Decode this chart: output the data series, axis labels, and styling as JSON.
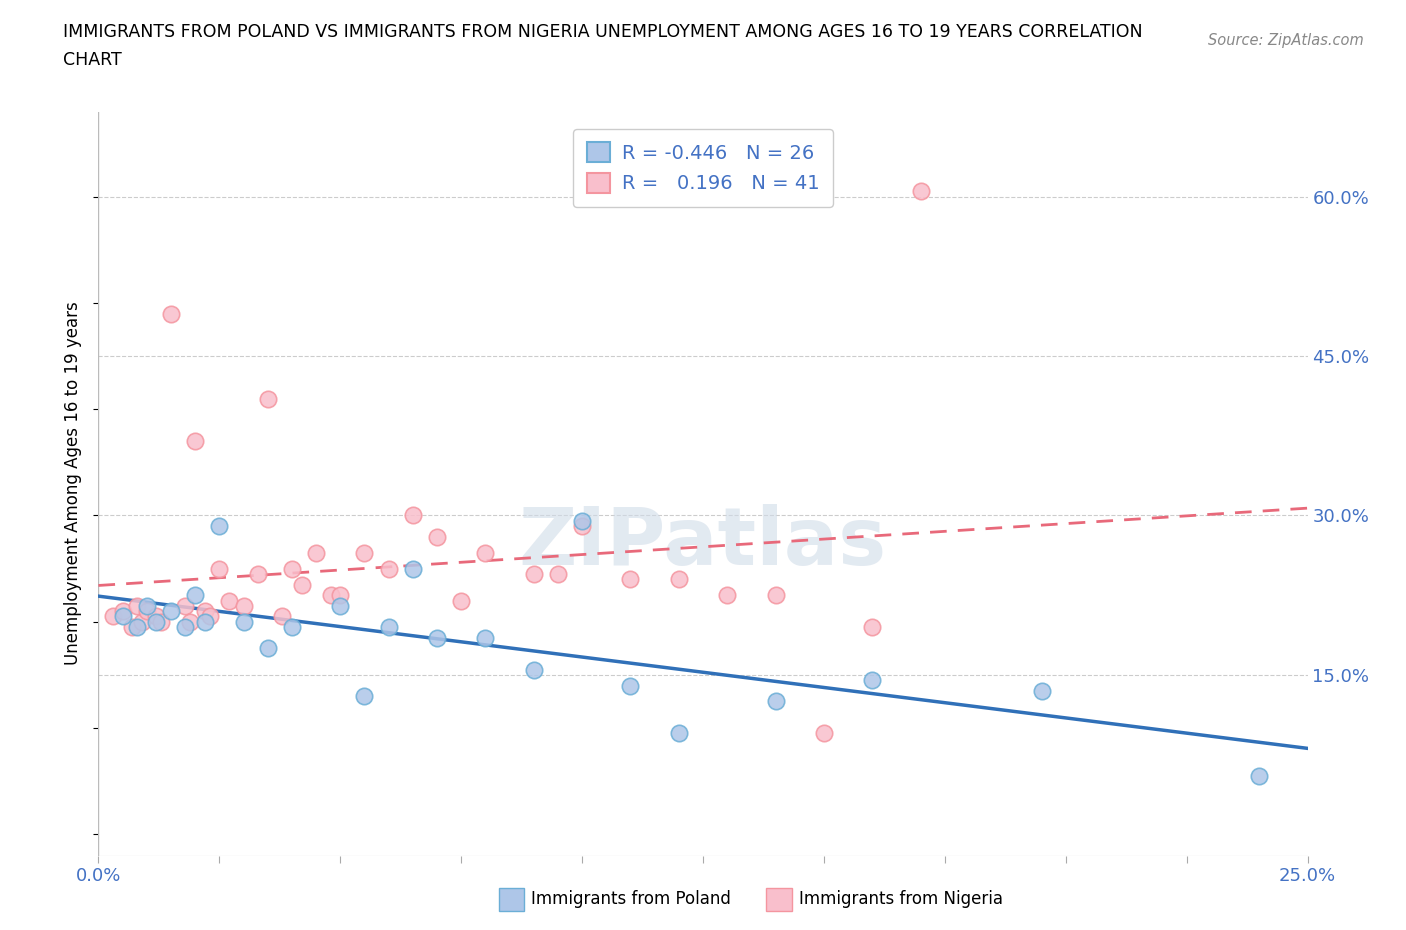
{
  "title_line1": "IMMIGRANTS FROM POLAND VS IMMIGRANTS FROM NIGERIA UNEMPLOYMENT AMONG AGES 16 TO 19 YEARS CORRELATION",
  "title_line2": "CHART",
  "source_text": "Source: ZipAtlas.com",
  "ylabel": "Unemployment Among Ages 16 to 19 years",
  "xlim": [
    0.0,
    0.25
  ],
  "ylim": [
    -0.02,
    0.68
  ],
  "xticks": [
    0.0,
    0.025,
    0.05,
    0.075,
    0.1,
    0.125,
    0.15,
    0.175,
    0.2,
    0.225,
    0.25
  ],
  "yticks_right": [
    0.0,
    0.15,
    0.3,
    0.45,
    0.6
  ],
  "ytick_labels_right": [
    "",
    "15.0%",
    "30.0%",
    "45.0%",
    "60.0%"
  ],
  "poland_color": "#aec6e8",
  "poland_edge": "#6baed6",
  "nigeria_color": "#f9bfcc",
  "nigeria_edge": "#f4959f",
  "poland_line_color": "#3070b8",
  "nigeria_line_color": "#e8697a",
  "poland_R": -0.446,
  "poland_N": 26,
  "nigeria_R": 0.196,
  "nigeria_N": 41,
  "poland_scatter_x": [
    0.005,
    0.008,
    0.01,
    0.012,
    0.015,
    0.018,
    0.02,
    0.022,
    0.025,
    0.03,
    0.035,
    0.04,
    0.05,
    0.055,
    0.06,
    0.065,
    0.07,
    0.08,
    0.09,
    0.1,
    0.11,
    0.12,
    0.14,
    0.16,
    0.195,
    0.24
  ],
  "poland_scatter_y": [
    0.205,
    0.195,
    0.215,
    0.2,
    0.21,
    0.195,
    0.225,
    0.2,
    0.29,
    0.2,
    0.175,
    0.195,
    0.215,
    0.13,
    0.195,
    0.25,
    0.185,
    0.185,
    0.155,
    0.295,
    0.14,
    0.095,
    0.125,
    0.145,
    0.135,
    0.055
  ],
  "nigeria_scatter_x": [
    0.003,
    0.005,
    0.007,
    0.008,
    0.009,
    0.01,
    0.012,
    0.013,
    0.015,
    0.018,
    0.019,
    0.02,
    0.022,
    0.023,
    0.025,
    0.027,
    0.03,
    0.033,
    0.035,
    0.038,
    0.04,
    0.042,
    0.045,
    0.048,
    0.05,
    0.055,
    0.06,
    0.065,
    0.07,
    0.075,
    0.08,
    0.09,
    0.095,
    0.1,
    0.11,
    0.12,
    0.13,
    0.14,
    0.15,
    0.16,
    0.17
  ],
  "nigeria_scatter_y": [
    0.205,
    0.21,
    0.195,
    0.215,
    0.2,
    0.21,
    0.205,
    0.2,
    0.49,
    0.215,
    0.2,
    0.37,
    0.21,
    0.205,
    0.25,
    0.22,
    0.215,
    0.245,
    0.41,
    0.205,
    0.25,
    0.235,
    0.265,
    0.225,
    0.225,
    0.265,
    0.25,
    0.3,
    0.28,
    0.22,
    0.265,
    0.245,
    0.245,
    0.29,
    0.24,
    0.24,
    0.225,
    0.225,
    0.095,
    0.195,
    0.605
  ],
  "watermark_text": "ZIPatlas",
  "watermark_color": "#d0dce8",
  "background_color": "#ffffff",
  "grid_color": "#cccccc",
  "tick_color": "#aaaaaa",
  "label_color": "#4472c4",
  "bottom_legend_poland": "Immigrants from Poland",
  "bottom_legend_nigeria": "Immigrants from Nigeria"
}
